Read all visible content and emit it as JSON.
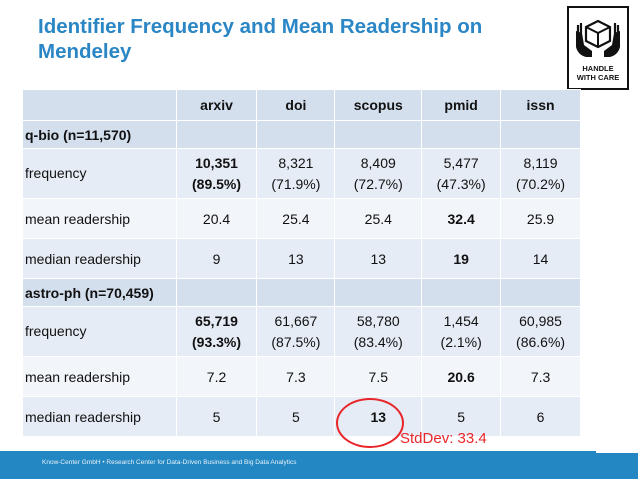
{
  "title": "Identifier Frequency and Mean Readership on Mendeley",
  "logo": {
    "line1": "HANDLE",
    "line2": "WITH CARE"
  },
  "table": {
    "columns": [
      "arxiv",
      "doi",
      "scopus",
      "pmid",
      "issn"
    ],
    "sections": [
      {
        "label": "q-bio (n=11,570)",
        "rows": [
          {
            "label": "frequency",
            "values": [
              "10,351\n(89.5%)",
              "8,321\n(71.9%)",
              "8,409\n(72.7%)",
              "5,477\n(47.3%)",
              "8,119\n(70.2%)"
            ],
            "bold": [
              0
            ]
          },
          {
            "label": "mean readership",
            "values": [
              "20.4",
              "25.4",
              "25.4",
              "32.4",
              "25.9"
            ],
            "bold": [
              3
            ]
          },
          {
            "label": "median readership",
            "values": [
              "9",
              "13",
              "13",
              "19",
              "14"
            ],
            "bold": [
              3
            ]
          }
        ]
      },
      {
        "label": "astro-ph (n=70,459)",
        "rows": [
          {
            "label": "frequency",
            "values": [
              "65,719\n(93.3%)",
              "61,667\n(87.5%)",
              "58,780\n(83.4%)",
              "1,454\n(2.1%)",
              "60,985\n(86.6%)"
            ],
            "bold": [
              0
            ]
          },
          {
            "label": "mean readership",
            "values": [
              "7.2",
              "7.3",
              "7.5",
              "20.6",
              "7.3"
            ],
            "bold": [
              3
            ]
          },
          {
            "label": "median readership",
            "values": [
              "5",
              "5",
              "13",
              "5",
              "6"
            ],
            "bold": [
              2
            ]
          }
        ]
      }
    ]
  },
  "annotation": "StdDev: 33.4",
  "footer": "Know-Center GmbH • Research Center for Data-Driven Business and Big Data Analytics",
  "colors": {
    "title": "#2b86c5",
    "header": "#d4dfee",
    "row_odd": "#e6ecf5",
    "row_even": "#f2f5fa",
    "accent": "#e8262a",
    "footer": "#2287c3"
  }
}
